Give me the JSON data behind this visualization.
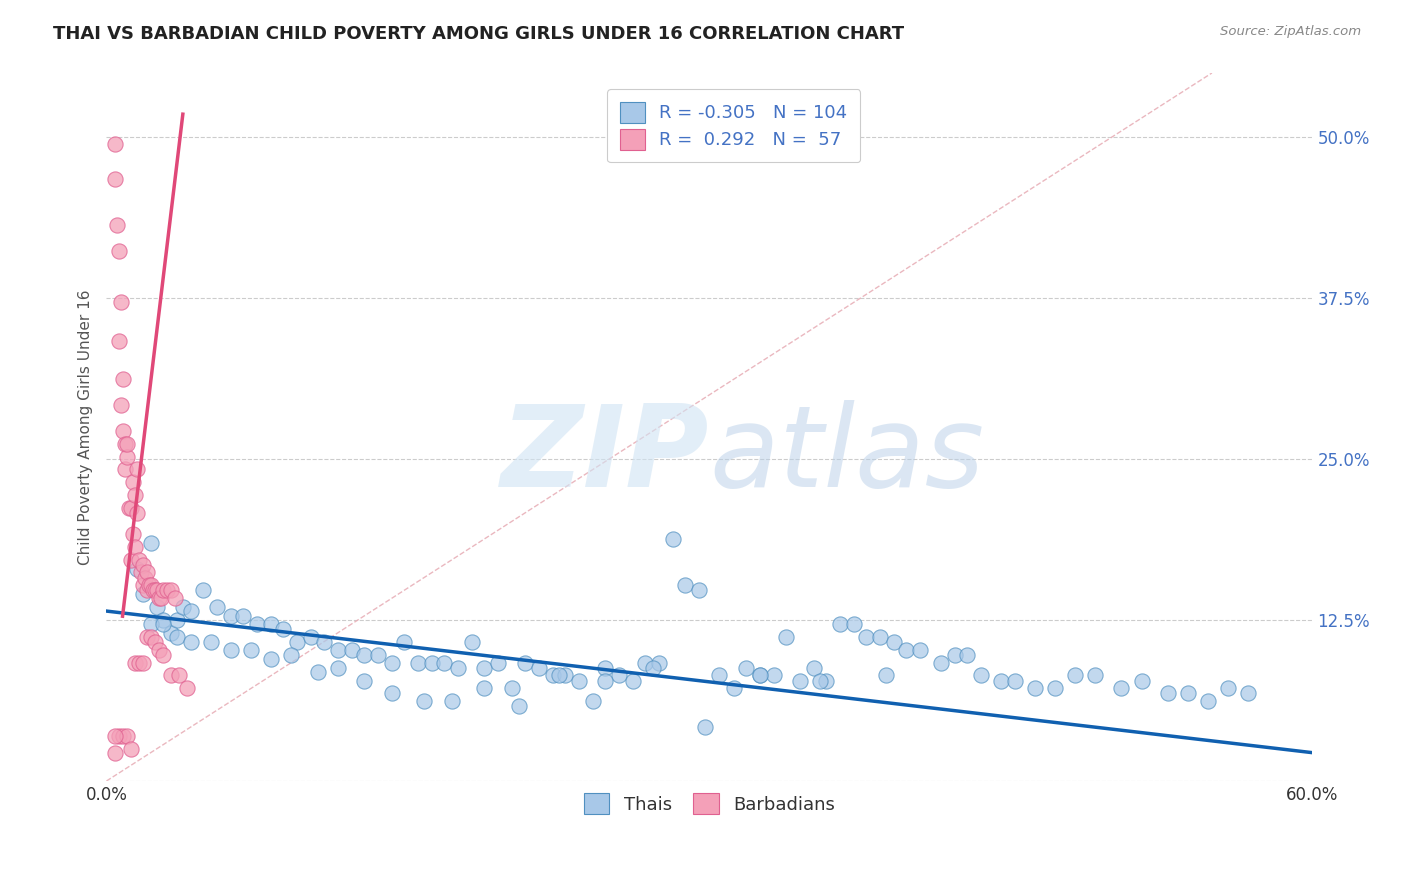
{
  "title": "THAI VS BARBADIAN CHILD POVERTY AMONG GIRLS UNDER 16 CORRELATION CHART",
  "source": "Source: ZipAtlas.com",
  "ylabel": "Child Poverty Among Girls Under 16",
  "xlim": [
    0.0,
    0.6
  ],
  "ylim": [
    0.0,
    0.55
  ],
  "xticks": [
    0.0,
    0.1,
    0.2,
    0.3,
    0.4,
    0.5,
    0.6
  ],
  "xticklabels": [
    "0.0%",
    "",
    "",
    "",
    "",
    "",
    "60.0%"
  ],
  "yticks": [
    0.0,
    0.125,
    0.25,
    0.375,
    0.5
  ],
  "yticklabels": [
    "",
    "12.5%",
    "25.0%",
    "37.5%",
    "50.0%"
  ],
  "blue_color": "#a8c8e8",
  "pink_color": "#f4a0b8",
  "blue_edge_color": "#5090c0",
  "pink_edge_color": "#e06090",
  "blue_line_color": "#1060b0",
  "pink_line_color": "#e04878",
  "dashed_line_color": "#e8b0b8",
  "grid_color": "#cccccc",
  "legend_R1": "-0.305",
  "legend_N1": "104",
  "legend_R2": "0.292",
  "legend_N2": "57",
  "label_thais": "Thais",
  "label_barbadians": "Barbadians",
  "blue_scatter_x": [
    0.015,
    0.018,
    0.022,
    0.025,
    0.028,
    0.032,
    0.035,
    0.038,
    0.042,
    0.048,
    0.055,
    0.062,
    0.068,
    0.075,
    0.082,
    0.088,
    0.095,
    0.102,
    0.108,
    0.115,
    0.122,
    0.128,
    0.135,
    0.142,
    0.148,
    0.155,
    0.162,
    0.168,
    0.175,
    0.182,
    0.188,
    0.195,
    0.202,
    0.208,
    0.215,
    0.222,
    0.228,
    0.235,
    0.242,
    0.248,
    0.255,
    0.262,
    0.268,
    0.275,
    0.282,
    0.288,
    0.295,
    0.305,
    0.312,
    0.318,
    0.325,
    0.332,
    0.338,
    0.345,
    0.352,
    0.358,
    0.365,
    0.372,
    0.378,
    0.385,
    0.392,
    0.398,
    0.405,
    0.415,
    0.422,
    0.428,
    0.435,
    0.445,
    0.452,
    0.462,
    0.472,
    0.482,
    0.492,
    0.505,
    0.515,
    0.528,
    0.538,
    0.548,
    0.558,
    0.568,
    0.022,
    0.028,
    0.035,
    0.042,
    0.052,
    0.062,
    0.072,
    0.082,
    0.092,
    0.105,
    0.115,
    0.128,
    0.142,
    0.158,
    0.172,
    0.188,
    0.205,
    0.225,
    0.248,
    0.272,
    0.298,
    0.325,
    0.355,
    0.388
  ],
  "blue_scatter_y": [
    0.165,
    0.145,
    0.185,
    0.135,
    0.125,
    0.115,
    0.125,
    0.135,
    0.132,
    0.148,
    0.135,
    0.128,
    0.128,
    0.122,
    0.122,
    0.118,
    0.108,
    0.112,
    0.108,
    0.102,
    0.102,
    0.098,
    0.098,
    0.092,
    0.108,
    0.092,
    0.092,
    0.092,
    0.088,
    0.108,
    0.088,
    0.092,
    0.072,
    0.092,
    0.088,
    0.082,
    0.082,
    0.078,
    0.062,
    0.088,
    0.082,
    0.078,
    0.092,
    0.092,
    0.188,
    0.152,
    0.148,
    0.082,
    0.072,
    0.088,
    0.082,
    0.082,
    0.112,
    0.078,
    0.088,
    0.078,
    0.122,
    0.122,
    0.112,
    0.112,
    0.108,
    0.102,
    0.102,
    0.092,
    0.098,
    0.098,
    0.082,
    0.078,
    0.078,
    0.072,
    0.072,
    0.082,
    0.082,
    0.072,
    0.078,
    0.068,
    0.068,
    0.062,
    0.072,
    0.068,
    0.122,
    0.122,
    0.112,
    0.108,
    0.108,
    0.102,
    0.102,
    0.095,
    0.098,
    0.085,
    0.088,
    0.078,
    0.068,
    0.062,
    0.062,
    0.072,
    0.058,
    0.082,
    0.078,
    0.088,
    0.042,
    0.082,
    0.078,
    0.082
  ],
  "pink_scatter_x": [
    0.004,
    0.004,
    0.005,
    0.006,
    0.006,
    0.007,
    0.007,
    0.008,
    0.008,
    0.009,
    0.009,
    0.01,
    0.01,
    0.011,
    0.012,
    0.012,
    0.013,
    0.013,
    0.014,
    0.014,
    0.015,
    0.015,
    0.016,
    0.017,
    0.018,
    0.018,
    0.019,
    0.02,
    0.02,
    0.021,
    0.022,
    0.023,
    0.024,
    0.025,
    0.026,
    0.027,
    0.028,
    0.03,
    0.032,
    0.034,
    0.004,
    0.006,
    0.008,
    0.01,
    0.012,
    0.014,
    0.016,
    0.018,
    0.02,
    0.022,
    0.024,
    0.026,
    0.028,
    0.032,
    0.036,
    0.04,
    0.004
  ],
  "pink_scatter_y": [
    0.495,
    0.468,
    0.432,
    0.412,
    0.342,
    0.372,
    0.292,
    0.272,
    0.312,
    0.262,
    0.242,
    0.252,
    0.262,
    0.212,
    0.172,
    0.212,
    0.232,
    0.192,
    0.222,
    0.182,
    0.208,
    0.242,
    0.172,
    0.162,
    0.168,
    0.152,
    0.158,
    0.162,
    0.148,
    0.152,
    0.152,
    0.148,
    0.148,
    0.148,
    0.142,
    0.142,
    0.148,
    0.148,
    0.148,
    0.142,
    0.022,
    0.035,
    0.035,
    0.035,
    0.025,
    0.092,
    0.092,
    0.092,
    0.112,
    0.112,
    0.108,
    0.102,
    0.098,
    0.082,
    0.082,
    0.072,
    0.035
  ],
  "blue_trendline_x": [
    0.0,
    0.6
  ],
  "blue_trendline_y": [
    0.132,
    0.022
  ],
  "pink_trendline_x": [
    0.008,
    0.038
  ],
  "pink_trendline_y": [
    0.128,
    0.518
  ],
  "dashed_line_x": [
    0.0,
    0.55
  ],
  "dashed_line_y": [
    0.0,
    0.55
  ]
}
